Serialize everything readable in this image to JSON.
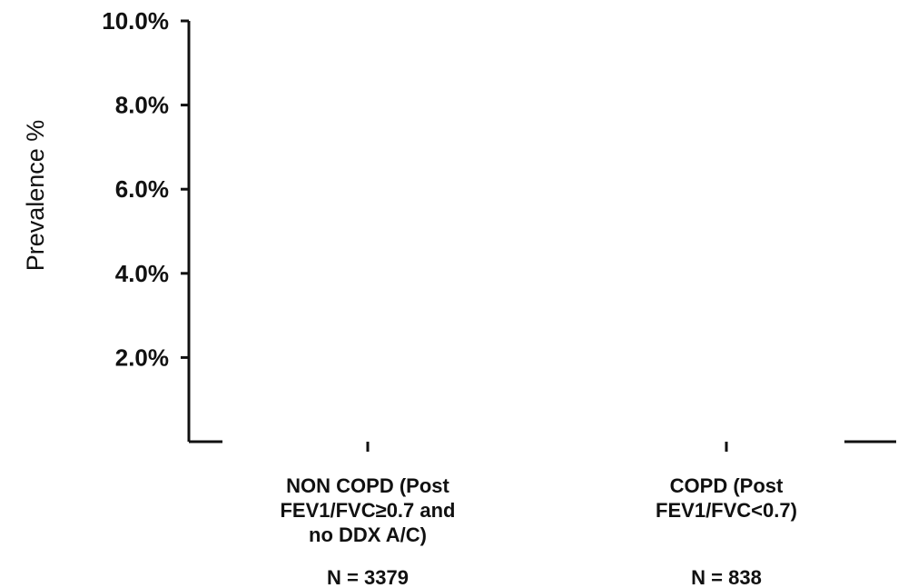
{
  "chart_data": {
    "type": "bar",
    "title": "",
    "ylabel": "Prevalence %",
    "xlabel": "",
    "ylim": [
      0,
      10
    ],
    "y_ticks": [
      {
        "value": 2,
        "label": "2.0%"
      },
      {
        "value": 4,
        "label": "4.0%"
      },
      {
        "value": 6,
        "label": "6.0%"
      },
      {
        "value": 8,
        "label": "8.0%"
      },
      {
        "value": 10,
        "label": "10.0%"
      }
    ],
    "categories": [
      {
        "label_lines": [
          "NON COPD (Post",
          "FEV1/FVC≥0.7 and",
          "no DDX A/C)"
        ],
        "n_label": "N = 3379"
      },
      {
        "label_lines": [
          "COPD (Post",
          "FEV1/FVC<0.7)"
        ],
        "n_label": "N = 838"
      }
    ],
    "grid": false,
    "colors": {
      "axis": "#111111",
      "text": "#111111",
      "background": "#ffffff"
    }
  }
}
